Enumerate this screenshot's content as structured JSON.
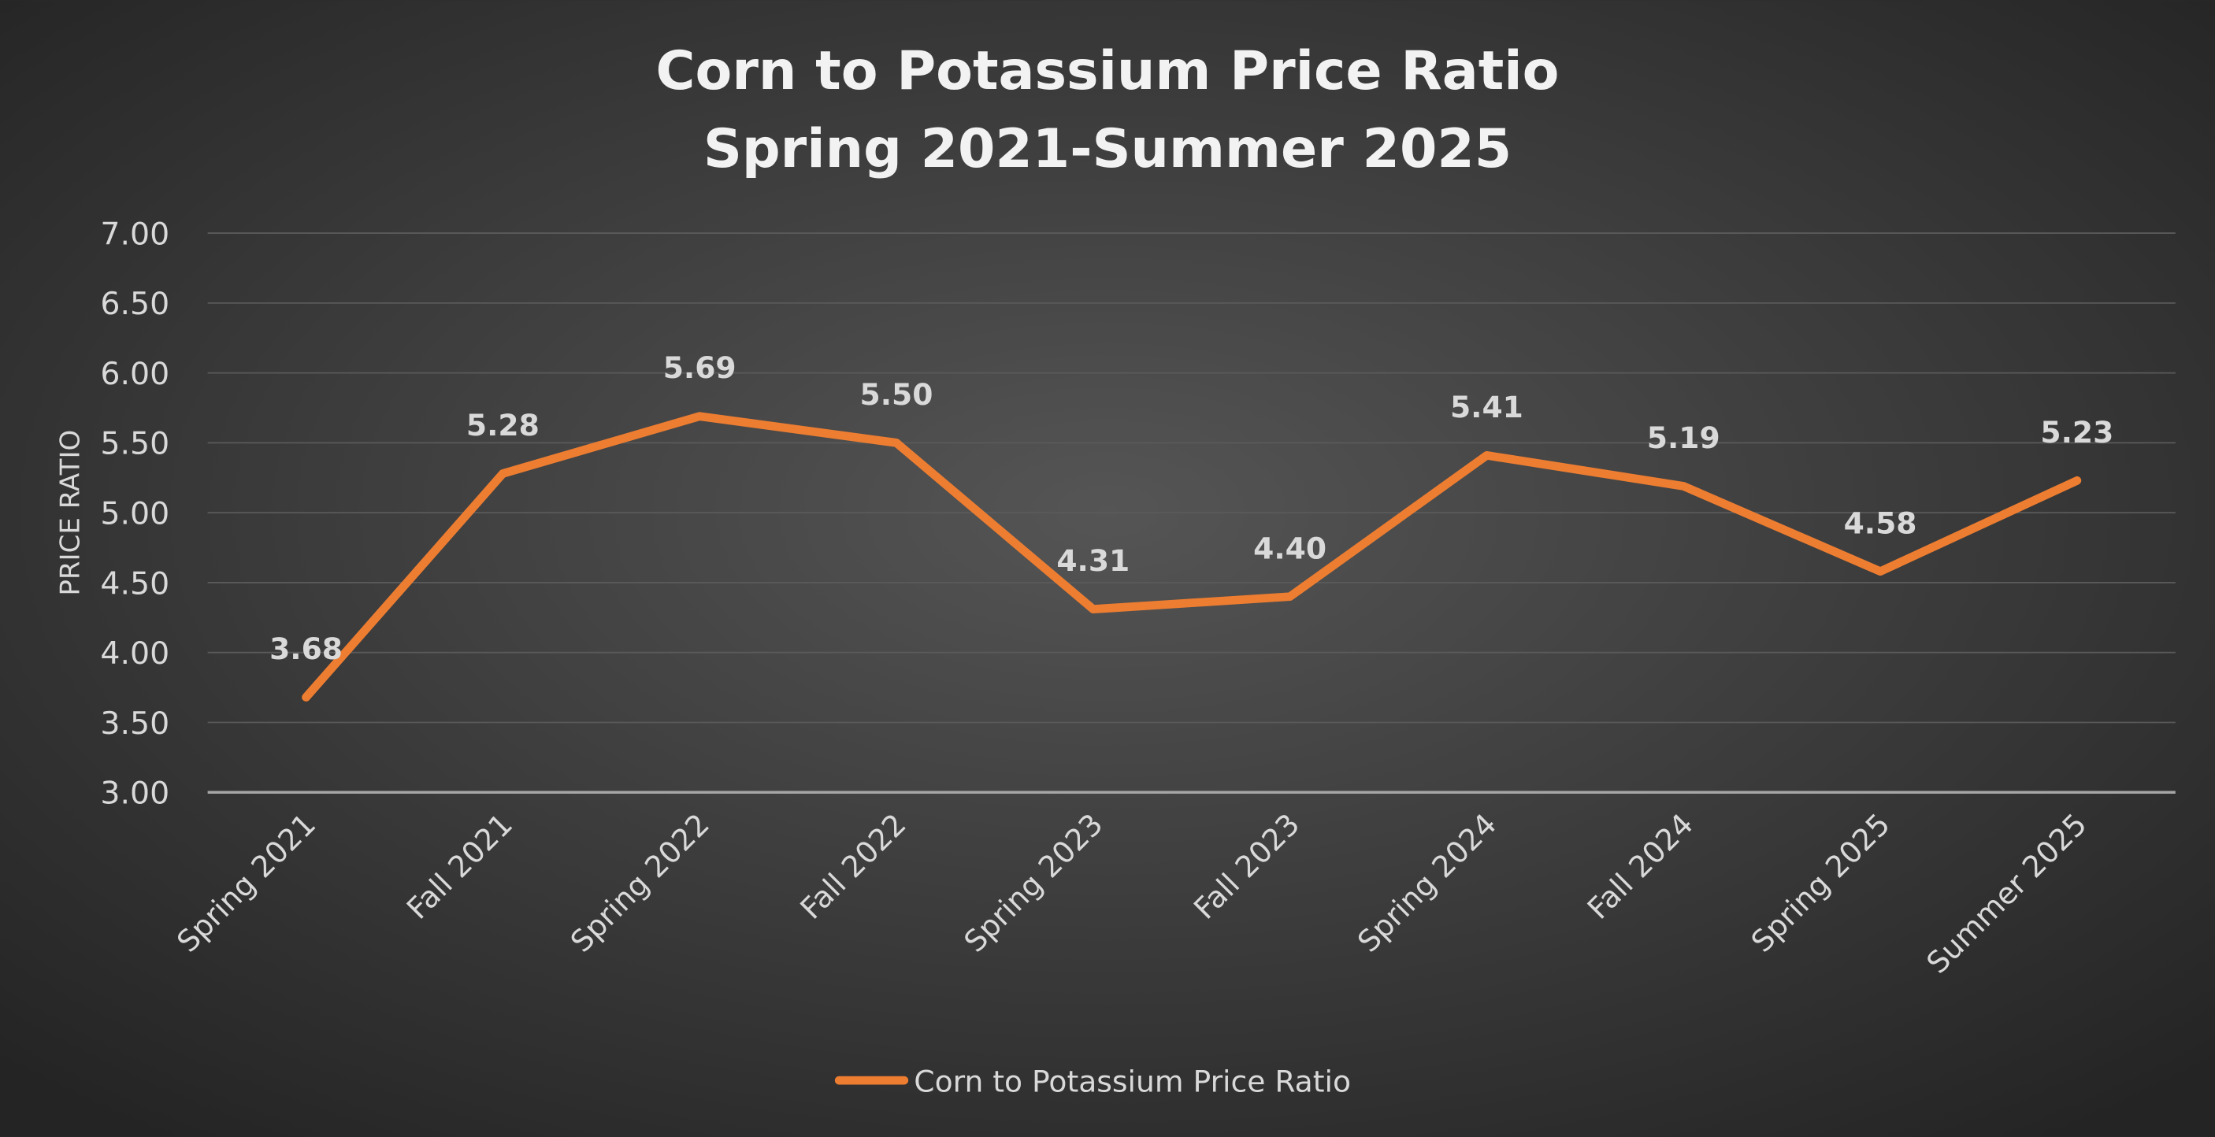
{
  "chart_data": {
    "type": "line",
    "title": "Corn to Potassium Price Ratio",
    "subtitle": "Spring 2021-Summer 2025",
    "xlabel": "",
    "ylabel": "PRICE RATIO",
    "categories": [
      "Spring 2021",
      "Fall 2021",
      "Spring 2022",
      "Fall 2022",
      "Spring 2023",
      "Fall 2023",
      "Spring 2024",
      "Fall 2024",
      "Spring 2025",
      "Summer 2025"
    ],
    "series": [
      {
        "name": "Corn to Potassium Price Ratio",
        "values": [
          3.68,
          5.28,
          5.69,
          5.5,
          4.31,
          4.4,
          5.41,
          5.19,
          4.58,
          5.23
        ],
        "color": "#ED7D31"
      }
    ],
    "data_labels": [
      "3.68",
      "5.28",
      "5.69",
      "5.50",
      "4.31",
      "4.40",
      "5.41",
      "5.19",
      "4.58",
      "5.23"
    ],
    "ylim": [
      3.0,
      7.0
    ],
    "yticks": [
      "3.00",
      "3.50",
      "4.00",
      "4.50",
      "5.00",
      "5.50",
      "6.00",
      "6.50",
      "7.00"
    ],
    "grid": true,
    "legend": "bottom",
    "colors": {
      "background_center": "#555555",
      "background_edge": "#242424",
      "text": "#d9d9d9",
      "grid": "#5a5a5a",
      "axis": "#a6a6a6"
    }
  }
}
